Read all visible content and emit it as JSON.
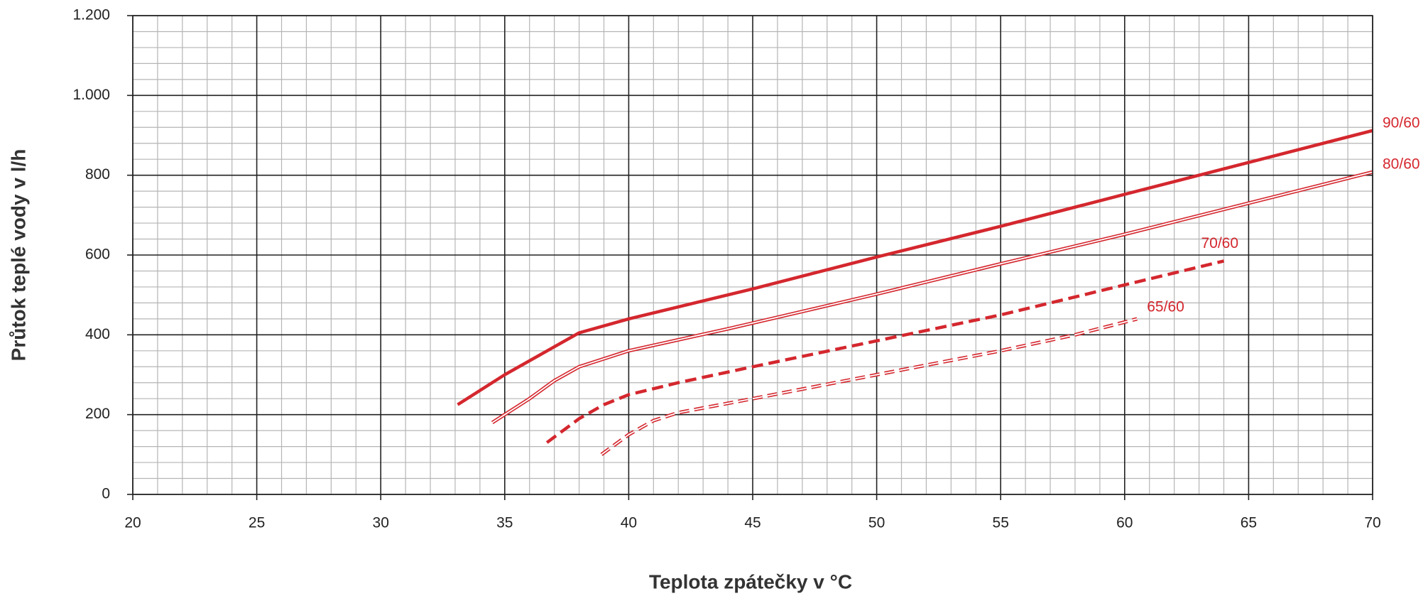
{
  "chart_data": {
    "type": "line",
    "x_label": "Teplota zpátečky v °C",
    "y_label": "Průtok teplé vody v l/h",
    "xlim": [
      20,
      70
    ],
    "xticks": [
      20,
      25,
      30,
      35,
      40,
      45,
      50,
      55,
      60,
      65,
      70
    ],
    "ylim": [
      0,
      1200
    ],
    "yticks": [
      0,
      200,
      400,
      600,
      800,
      {
        "value": 1000,
        "label": "1.000"
      },
      {
        "value": 1200,
        "label": "1.200"
      }
    ],
    "grid": true,
    "series": [
      {
        "name": "90/60",
        "color": "#d4272e",
        "dashed": false,
        "double": false,
        "x": [
          33.1,
          35,
          37,
          38,
          40,
          45,
          50,
          55,
          60,
          65,
          70
        ],
        "values": [
          225,
          300,
          370,
          405,
          440,
          515,
          595,
          672,
          752,
          832,
          912
        ]
      },
      {
        "name": "80/60",
        "color": "#d4272e",
        "dashed": false,
        "double": true,
        "x": [
          34.5,
          36,
          37,
          38,
          40,
          44,
          50,
          55,
          60,
          70
        ],
        "values": [
          180,
          240,
          285,
          320,
          360,
          415,
          502,
          578,
          652,
          808
        ]
      },
      {
        "name": "70/60",
        "color": "#d4272e",
        "dashed": true,
        "double": false,
        "x": [
          36.7,
          38,
          39,
          40,
          42,
          45,
          50,
          55,
          60,
          64
        ],
        "values": [
          130,
          190,
          225,
          250,
          280,
          320,
          385,
          450,
          525,
          585
        ]
      },
      {
        "name": "65/60",
        "color": "#d4272e",
        "dashed": true,
        "double": true,
        "x": [
          38.9,
          40,
          41,
          42,
          45,
          50,
          55,
          58,
          60.5
        ],
        "values": [
          100,
          150,
          185,
          205,
          240,
          300,
          360,
          400,
          440
        ]
      }
    ]
  }
}
